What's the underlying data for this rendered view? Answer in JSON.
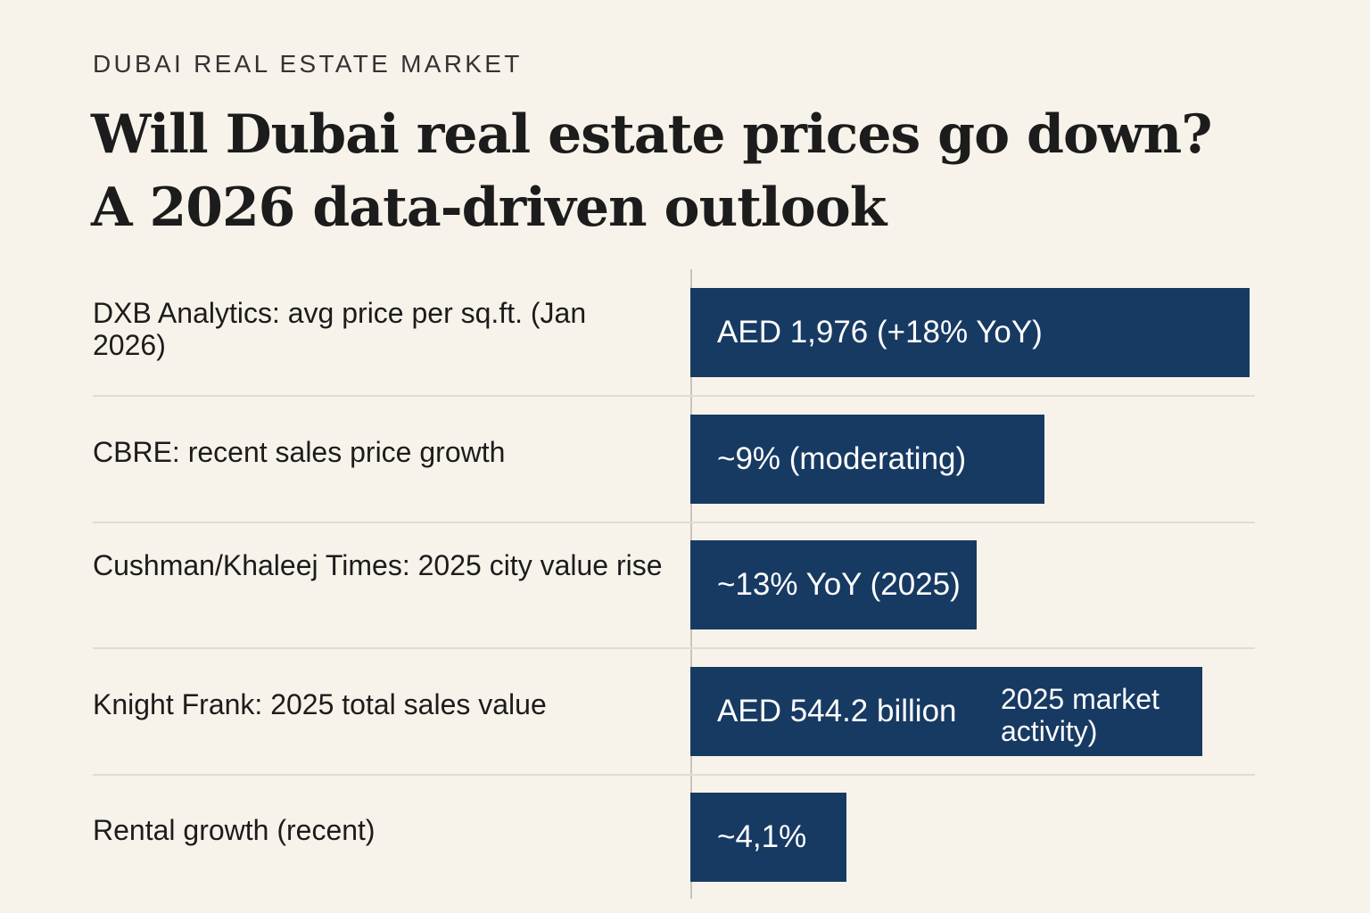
{
  "eyebrow": "DUBAI REAL ESTATE MARKET",
  "title": {
    "line1": "Will Dubai real estate prices go down?",
    "line2": "A 2026 data-driven outlook"
  },
  "colors": {
    "background": "#f8f3ea",
    "bar": "#173a63",
    "bar_text": "#ffffff"
  },
  "chart_data": {
    "type": "bar",
    "orientation": "horizontal",
    "grid": false,
    "rows": [
      {
        "label": "DXB Analytics: avg price per sq.ft. (Jan 2026)",
        "value_text": "AED 1,976 (+18% YoY)",
        "bar_fraction": 0.998
      },
      {
        "label": "CBRE: recent sales price growth",
        "value_text": "~9% (moderating)",
        "bar_fraction": 0.632
      },
      {
        "label": "Cushman/Khaleej Times: 2025 city value rise",
        "value_text": "~13% YoY (2025)",
        "bar_fraction": 0.511
      },
      {
        "label": "Knight Frank: 2025 total sales value",
        "value_text": "AED 544.2 billion",
        "note": "2025 market activity)",
        "bar_fraction": 0.914
      },
      {
        "label": "Rental growth (recent)",
        "value_text": "~4,1%",
        "bar_fraction": 0.279
      }
    ]
  }
}
